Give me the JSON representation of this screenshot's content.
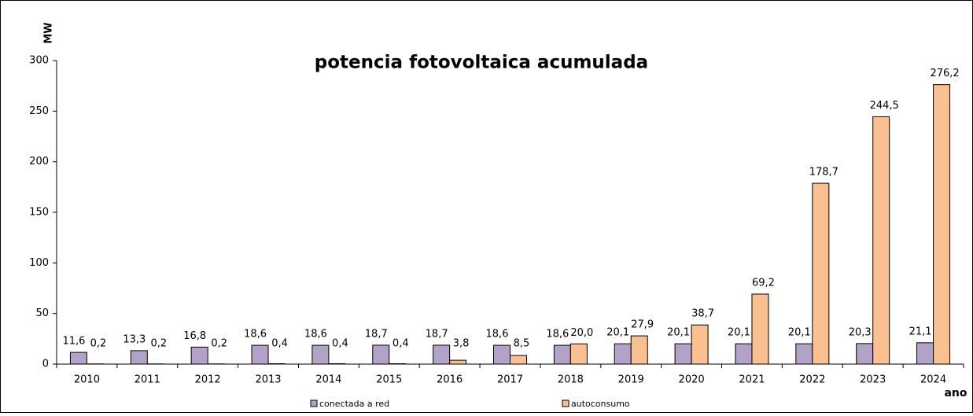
{
  "chart_data": {
    "type": "bar",
    "title": "potencia fotovoltaica acumulada",
    "y_label": "MW",
    "x_label": "ano",
    "categories": [
      "2010",
      "2011",
      "2012",
      "2013",
      "2014",
      "2015",
      "2016",
      "2017",
      "2018",
      "2019",
      "2020",
      "2021",
      "2022",
      "2023",
      "2024"
    ],
    "series": [
      {
        "name": "conectada a red",
        "color": "#b3a2c7",
        "values": [
          11.6,
          13.3,
          16.8,
          18.6,
          18.6,
          18.7,
          18.7,
          18.6,
          18.6,
          20.1,
          20.1,
          20.1,
          20.1,
          20.3,
          21.1
        ],
        "value_labels": [
          "11,6",
          "13,3",
          "16,8",
          "18,6",
          "18,6",
          "18,7",
          "18,7",
          "18,6",
          "18,6",
          "20,1",
          "20,1",
          "20,1",
          "20,1",
          "20,3",
          "21,1"
        ]
      },
      {
        "name": "autoconsumo",
        "color": "#fac090",
        "values": [
          0.2,
          0.2,
          0.2,
          0.4,
          0.4,
          0.4,
          3.8,
          8.5,
          20.0,
          27.9,
          38.7,
          69.2,
          178.7,
          244.5,
          276.2
        ],
        "value_labels": [
          "0,2",
          "0,2",
          "0,2",
          "0,4",
          "0,4",
          "0,4",
          "3,8",
          "8,5",
          "20,0",
          "27,9",
          "38,7",
          "69,2",
          "178,7",
          "244,5",
          "276,2"
        ]
      }
    ],
    "ylim": [
      0,
      300
    ],
    "yticks": [
      0,
      50,
      100,
      150,
      200,
      250,
      300
    ],
    "grid": false
  }
}
